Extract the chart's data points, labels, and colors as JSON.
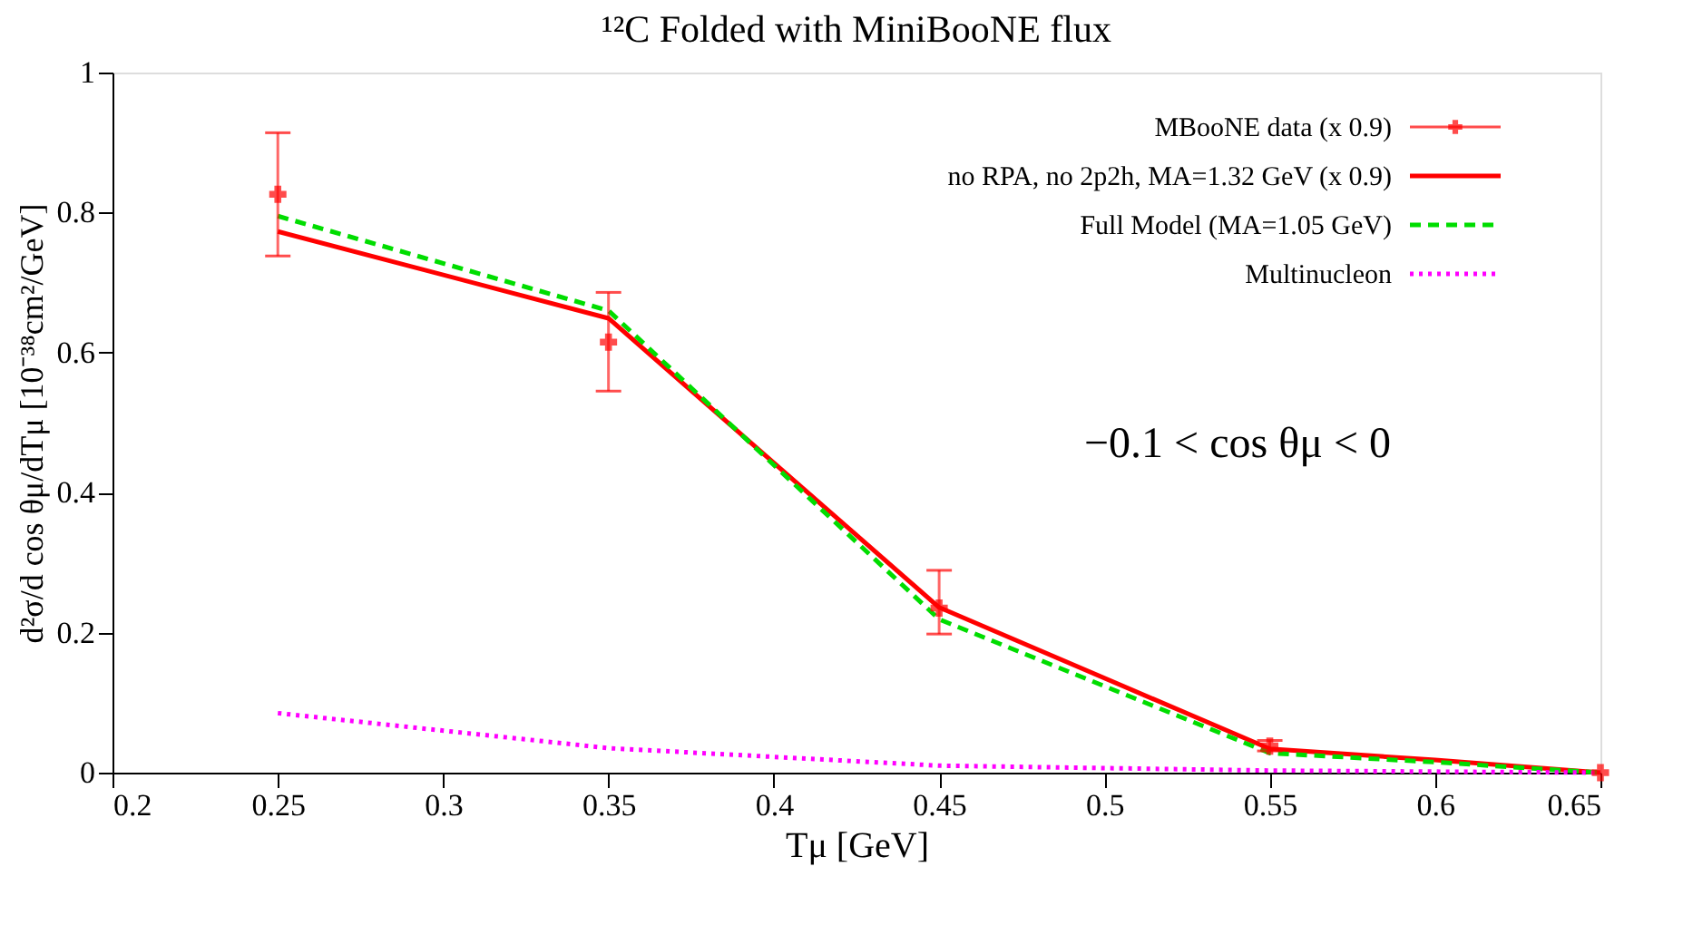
{
  "chart_data": {
    "type": "line",
    "title": "¹²C Folded with MiniBooNE flux",
    "xlabel": "Tμ [GeV]",
    "ylabel": "d²σ/d cos θμ/dTμ [10⁻³⁸cm²/GeV]",
    "x": [
      0.25,
      0.35,
      0.45,
      0.55,
      0.65
    ],
    "series": [
      {
        "name": "MBooNE data (x 0.9)",
        "type": "scatter",
        "color": "#ff0000",
        "marker": "cross",
        "values": [
          0.826,
          0.615,
          0.235,
          0.038,
          0
        ],
        "errors": [
          [
            0.738,
            0.914
          ],
          [
            0.545,
            0.686
          ],
          [
            0.198,
            0.289
          ],
          [
            0.031,
            0.046
          ],
          null
        ]
      },
      {
        "name": "no RPA, no 2p2h, MA=1.32 GeV (x 0.9)",
        "color": "#ff0000",
        "line_style": "solid",
        "x": [
          0.25,
          0.35,
          0.45,
          0.55,
          0.6,
          0.65
        ],
        "values": [
          0.773,
          0.649,
          0.236,
          0.034,
          0.018,
          0
        ]
      },
      {
        "name": "Full Model (MA=1.05 GeV)",
        "color": "#00dd00",
        "line_style": "dashed",
        "x": [
          0.25,
          0.35,
          0.45,
          0.55,
          0.6,
          0.65
        ],
        "values": [
          0.795,
          0.66,
          0.219,
          0.028,
          0.015,
          0
        ]
      },
      {
        "name": "Multinucleon",
        "color": "#ff00ff",
        "line_style": "dotted",
        "values": [
          0.085,
          0.035,
          0.01,
          0.003,
          0
        ]
      }
    ],
    "annotations": [
      "−0.1 < cos θμ < 0"
    ],
    "xlim": [
      0.2,
      0.65
    ],
    "xticks": [
      0.2,
      0.25,
      0.3,
      0.35,
      0.4,
      0.45,
      0.5,
      0.55,
      0.6,
      0.65
    ],
    "ylim": [
      0,
      1
    ],
    "yticks": [
      0,
      0.2,
      0.4,
      0.6,
      0.8,
      1
    ],
    "grid": false,
    "legend": "top right"
  }
}
